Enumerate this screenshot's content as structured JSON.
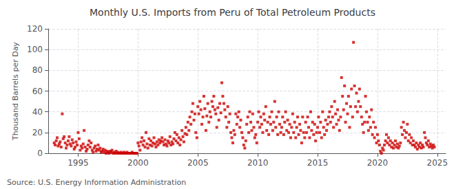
{
  "chart_data": {
    "type": "scatter",
    "title": "Monthly U.S. Imports from Peru of Total Petroleum Products",
    "ylabel": "Thousand Barrels per Day",
    "annotations": [
      "Source: U.S. Energy Information Administration"
    ],
    "color": "#cc0000",
    "marker": "square",
    "grid": true,
    "xlim": [
      1992.5,
      2025.7
    ],
    "xticks": [
      1995,
      2000,
      2005,
      2010,
      2015,
      2020,
      2025
    ],
    "ylim": [
      0,
      120
    ],
    "yticks": [
      0,
      20,
      40,
      60,
      80,
      100,
      120
    ],
    "x": [
      1993.0,
      1993.08,
      1993.17,
      1993.25,
      1993.33,
      1993.42,
      1993.5,
      1993.58,
      1993.67,
      1993.75,
      1993.83,
      1993.92,
      1994.0,
      1994.08,
      1994.17,
      1994.25,
      1994.33,
      1994.42,
      1994.5,
      1994.58,
      1994.67,
      1994.75,
      1994.83,
      1994.92,
      1995.0,
      1995.08,
      1995.17,
      1995.25,
      1995.33,
      1995.42,
      1995.5,
      1995.58,
      1995.67,
      1995.75,
      1995.83,
      1995.92,
      1996.0,
      1996.08,
      1996.17,
      1996.25,
      1996.33,
      1996.42,
      1996.5,
      1996.58,
      1996.67,
      1996.75,
      1996.83,
      1996.92,
      1997.0,
      1997.08,
      1997.17,
      1997.25,
      1997.33,
      1997.42,
      1997.5,
      1997.58,
      1997.67,
      1997.75,
      1997.83,
      1997.92,
      1998.0,
      1998.08,
      1998.17,
      1998.25,
      1998.33,
      1998.42,
      1998.5,
      1998.58,
      1998.67,
      1998.75,
      1998.83,
      1998.92,
      1999.0,
      1999.08,
      1999.17,
      1999.25,
      1999.33,
      1999.42,
      1999.5,
      1999.58,
      1999.67,
      1999.75,
      1999.83,
      1999.92,
      2000.0,
      2000.08,
      2000.17,
      2000.25,
      2000.33,
      2000.42,
      2000.5,
      2000.58,
      2000.67,
      2000.75,
      2000.83,
      2000.92,
      2001.0,
      2001.08,
      2001.17,
      2001.25,
      2001.33,
      2001.42,
      2001.5,
      2001.58,
      2001.67,
      2001.75,
      2001.83,
      2001.92,
      2002.0,
      2002.08,
      2002.17,
      2002.25,
      2002.33,
      2002.42,
      2002.5,
      2002.58,
      2002.67,
      2002.75,
      2002.83,
      2002.92,
      2003.0,
      2003.08,
      2003.17,
      2003.25,
      2003.33,
      2003.42,
      2003.5,
      2003.58,
      2003.67,
      2003.75,
      2003.83,
      2003.92,
      2004.0,
      2004.08,
      2004.17,
      2004.25,
      2004.33,
      2004.42,
      2004.5,
      2004.58,
      2004.67,
      2004.75,
      2004.83,
      2004.92,
      2005.0,
      2005.08,
      2005.17,
      2005.25,
      2005.33,
      2005.42,
      2005.5,
      2005.58,
      2005.67,
      2005.75,
      2005.83,
      2005.92,
      2006.0,
      2006.08,
      2006.17,
      2006.25,
      2006.33,
      2006.42,
      2006.5,
      2006.58,
      2006.67,
      2006.75,
      2006.83,
      2006.92,
      2007.0,
      2007.08,
      2007.17,
      2007.25,
      2007.33,
      2007.42,
      2007.5,
      2007.58,
      2007.67,
      2007.75,
      2007.83,
      2007.92,
      2008.0,
      2008.08,
      2008.17,
      2008.25,
      2008.33,
      2008.42,
      2008.5,
      2008.58,
      2008.67,
      2008.75,
      2008.83,
      2008.92,
      2009.0,
      2009.08,
      2009.17,
      2009.25,
      2009.33,
      2009.42,
      2009.5,
      2009.58,
      2009.67,
      2009.75,
      2009.83,
      2009.92,
      2010.0,
      2010.08,
      2010.17,
      2010.25,
      2010.33,
      2010.42,
      2010.5,
      2010.58,
      2010.67,
      2010.75,
      2010.83,
      2010.92,
      2011.0,
      2011.08,
      2011.17,
      2011.25,
      2011.33,
      2011.42,
      2011.5,
      2011.58,
      2011.67,
      2011.75,
      2011.83,
      2011.92,
      2012.0,
      2012.08,
      2012.17,
      2012.25,
      2012.33,
      2012.42,
      2012.5,
      2012.58,
      2012.67,
      2012.75,
      2012.83,
      2012.92,
      2013.0,
      2013.08,
      2013.17,
      2013.25,
      2013.33,
      2013.42,
      2013.5,
      2013.58,
      2013.67,
      2013.75,
      2013.83,
      2013.92,
      2014.0,
      2014.08,
      2014.17,
      2014.25,
      2014.33,
      2014.42,
      2014.5,
      2014.58,
      2014.67,
      2014.75,
      2014.83,
      2014.92,
      2015.0,
      2015.08,
      2015.17,
      2015.25,
      2015.33,
      2015.42,
      2015.5,
      2015.58,
      2015.67,
      2015.75,
      2015.83,
      2015.92,
      2016.0,
      2016.08,
      2016.17,
      2016.25,
      2016.33,
      2016.42,
      2016.5,
      2016.58,
      2016.67,
      2016.75,
      2016.83,
      2016.92,
      2017.0,
      2017.08,
      2017.17,
      2017.25,
      2017.33,
      2017.42,
      2017.5,
      2017.58,
      2017.67,
      2017.75,
      2017.83,
      2017.92,
      2018.0,
      2018.08,
      2018.17,
      2018.25,
      2018.33,
      2018.42,
      2018.5,
      2018.58,
      2018.67,
      2018.75,
      2018.83,
      2018.92,
      2019.0,
      2019.08,
      2019.17,
      2019.25,
      2019.33,
      2019.42,
      2019.5,
      2019.58,
      2019.67,
      2019.75,
      2019.83,
      2019.92,
      2020.0,
      2020.08,
      2020.17,
      2020.25,
      2020.33,
      2020.42,
      2020.5,
      2020.58,
      2020.67,
      2020.75,
      2020.83,
      2020.92,
      2021.0,
      2021.08,
      2021.17,
      2021.25,
      2021.33,
      2021.42,
      2021.5,
      2021.58,
      2021.67,
      2021.75,
      2021.83,
      2021.92,
      2022.0,
      2022.08,
      2022.17,
      2022.25,
      2022.33,
      2022.42,
      2022.5,
      2022.58,
      2022.67,
      2022.75,
      2022.83,
      2022.92,
      2023.0,
      2023.08,
      2023.17,
      2023.25,
      2023.33,
      2023.42,
      2023.5,
      2023.58,
      2023.67,
      2023.75,
      2023.83,
      2023.92,
      2024.0,
      2024.08,
      2024.17,
      2024.25,
      2024.33,
      2024.42,
      2024.5,
      2024.58,
      2024.67,
      2024.75
    ],
    "values": [
      10,
      8,
      12,
      15,
      7,
      9,
      11,
      6,
      38,
      14,
      16,
      10,
      5,
      8,
      12,
      16,
      9,
      7,
      13,
      10,
      4,
      6,
      11,
      8,
      20,
      14,
      3,
      7,
      5,
      9,
      22,
      6,
      2,
      4,
      8,
      12,
      6,
      10,
      3,
      1,
      5,
      7,
      2,
      4,
      8,
      3,
      5,
      1,
      2,
      4,
      1,
      3,
      0,
      2,
      1,
      0,
      2,
      1,
      3,
      0,
      1,
      0,
      2,
      0,
      1,
      0,
      0,
      1,
      0,
      0,
      1,
      0,
      0,
      1,
      0,
      0,
      0,
      0,
      1,
      0,
      0,
      0,
      0,
      0,
      10,
      7,
      3,
      11,
      15,
      8,
      12,
      6,
      20,
      9,
      5,
      14,
      8,
      12,
      7,
      10,
      15,
      9,
      6,
      11,
      8,
      13,
      10,
      12,
      15,
      11,
      8,
      13,
      9,
      7,
      12,
      10,
      16,
      8,
      11,
      9,
      14,
      20,
      12,
      18,
      10,
      15,
      8,
      13,
      22,
      16,
      11,
      19,
      25,
      18,
      30,
      22,
      35,
      28,
      40,
      48,
      32,
      38,
      20,
      15,
      45,
      38,
      50,
      42,
      28,
      35,
      55,
      43,
      22,
      36,
      48,
      30,
      40,
      35,
      50,
      45,
      55,
      42,
      38,
      25,
      44,
      32,
      48,
      39,
      68,
      55,
      48,
      42,
      35,
      25,
      45,
      30,
      38,
      20,
      15,
      10,
      22,
      18,
      38,
      28,
      35,
      40,
      25,
      32,
      20,
      15,
      8,
      5,
      12,
      28,
      35,
      20,
      40,
      30,
      22,
      38,
      25,
      15,
      18,
      10,
      30,
      40,
      25,
      35,
      28,
      20,
      38,
      32,
      45,
      22,
      30,
      18,
      35,
      28,
      40,
      22,
      30,
      50,
      25,
      35,
      18,
      40,
      28,
      20,
      25,
      35,
      18,
      30,
      40,
      22,
      32,
      20,
      28,
      15,
      25,
      38,
      20,
      30,
      15,
      25,
      35,
      18,
      28,
      22,
      10,
      35,
      20,
      15,
      30,
      20,
      35,
      25,
      15,
      40,
      22,
      30,
      18,
      28,
      12,
      20,
      25,
      35,
      20,
      30,
      15,
      40,
      25,
      18,
      32,
      22,
      28,
      35,
      40,
      30,
      45,
      35,
      25,
      50,
      38,
      28,
      42,
      32,
      22,
      35,
      73,
      55,
      42,
      65,
      30,
      48,
      38,
      55,
      25,
      45,
      62,
      35,
      107,
      65,
      45,
      58,
      40,
      50,
      62,
      45,
      35,
      28,
      20,
      30,
      55,
      40,
      30,
      22,
      35,
      25,
      42,
      18,
      30,
      15,
      25,
      10,
      18,
      12,
      8,
      2,
      0,
      5,
      3,
      8,
      12,
      18,
      10,
      15,
      8,
      12,
      6,
      10,
      5,
      8,
      12,
      6,
      9,
      5,
      7,
      10,
      25,
      18,
      30,
      22,
      15,
      20,
      28,
      12,
      18,
      10,
      15,
      8,
      12,
      8,
      6,
      10,
      4,
      8,
      6,
      10,
      5,
      8,
      6,
      20,
      15,
      10,
      8,
      12,
      6,
      9,
      7,
      5,
      8,
      6
    ]
  }
}
